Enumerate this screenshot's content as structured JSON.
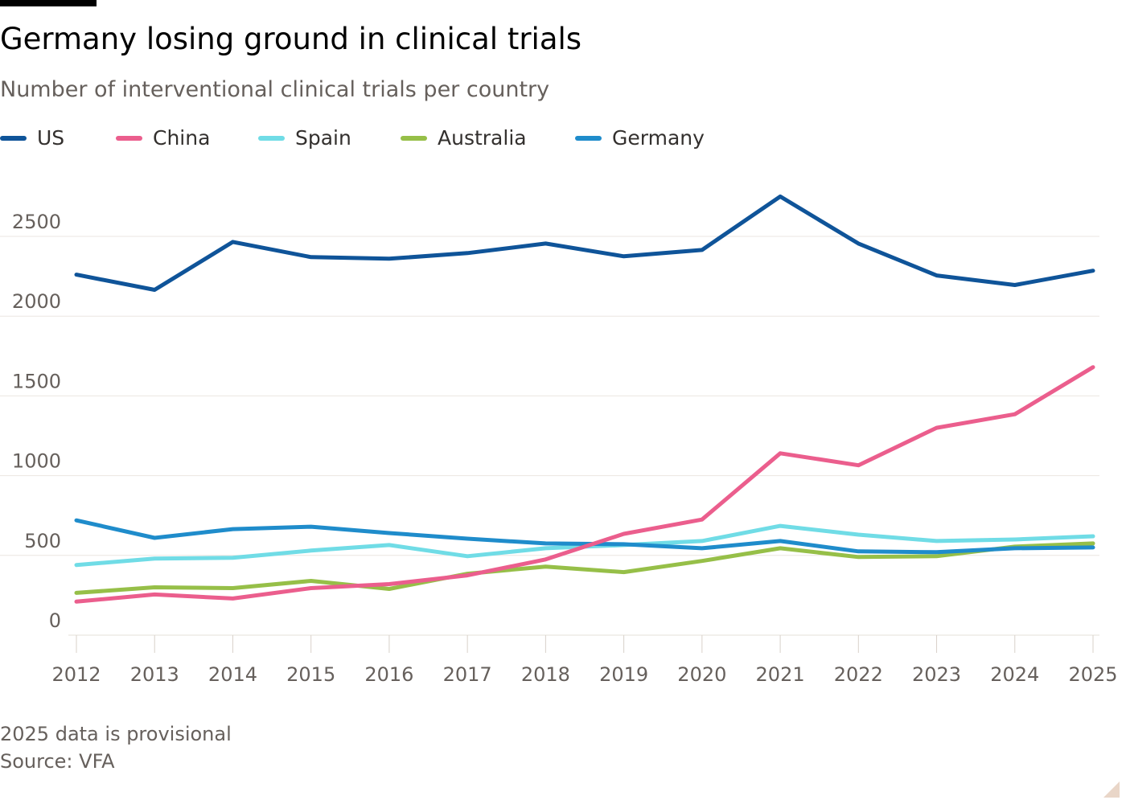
{
  "header": {
    "title": "Germany losing ground in clinical trials",
    "subtitle": "Number of interventional clinical trials per country"
  },
  "footer": {
    "note": "2025 data is provisional",
    "source": "Source: VFA"
  },
  "chart_data": {
    "type": "line",
    "title": "Germany losing ground in clinical trials",
    "subtitle": "Number of interventional clinical trials per country",
    "xlabel": "",
    "ylabel": "",
    "x": [
      "2012",
      "2013",
      "2014",
      "2015",
      "2016",
      "2017",
      "2018",
      "2019",
      "2020",
      "2021",
      "2022",
      "2023",
      "2024",
      "2025"
    ],
    "ylim": [
      0,
      2800
    ],
    "yticks": [
      0,
      500,
      1000,
      1500,
      2000,
      2500
    ],
    "ytick_labels": [
      "0",
      "500",
      "1000",
      "1500",
      "2000",
      "2500"
    ],
    "grid": true,
    "legend_position": "top-left",
    "series": [
      {
        "name": "US",
        "color": "#0f5499",
        "values": [
          2260,
          2165,
          2465,
          2370,
          2360,
          2395,
          2455,
          2375,
          2415,
          2750,
          2455,
          2255,
          2195,
          2285
        ]
      },
      {
        "name": "China",
        "color": "#eb5e8d",
        "values": [
          210,
          255,
          230,
          295,
          320,
          375,
          475,
          635,
          725,
          1140,
          1065,
          1300,
          1385,
          1680
        ]
      },
      {
        "name": "Spain",
        "color": "#70dce6",
        "values": [
          440,
          480,
          485,
          530,
          565,
          495,
          545,
          565,
          590,
          685,
          630,
          590,
          600,
          620
        ]
      },
      {
        "name": "Australia",
        "color": "#96bf48",
        "values": [
          265,
          300,
          295,
          340,
          290,
          385,
          430,
          395,
          465,
          545,
          490,
          495,
          555,
          575
        ]
      },
      {
        "name": "Germany",
        "color": "#1f8ccb",
        "values": [
          720,
          610,
          665,
          680,
          640,
          605,
          575,
          570,
          545,
          590,
          525,
          520,
          545,
          550
        ]
      }
    ]
  }
}
